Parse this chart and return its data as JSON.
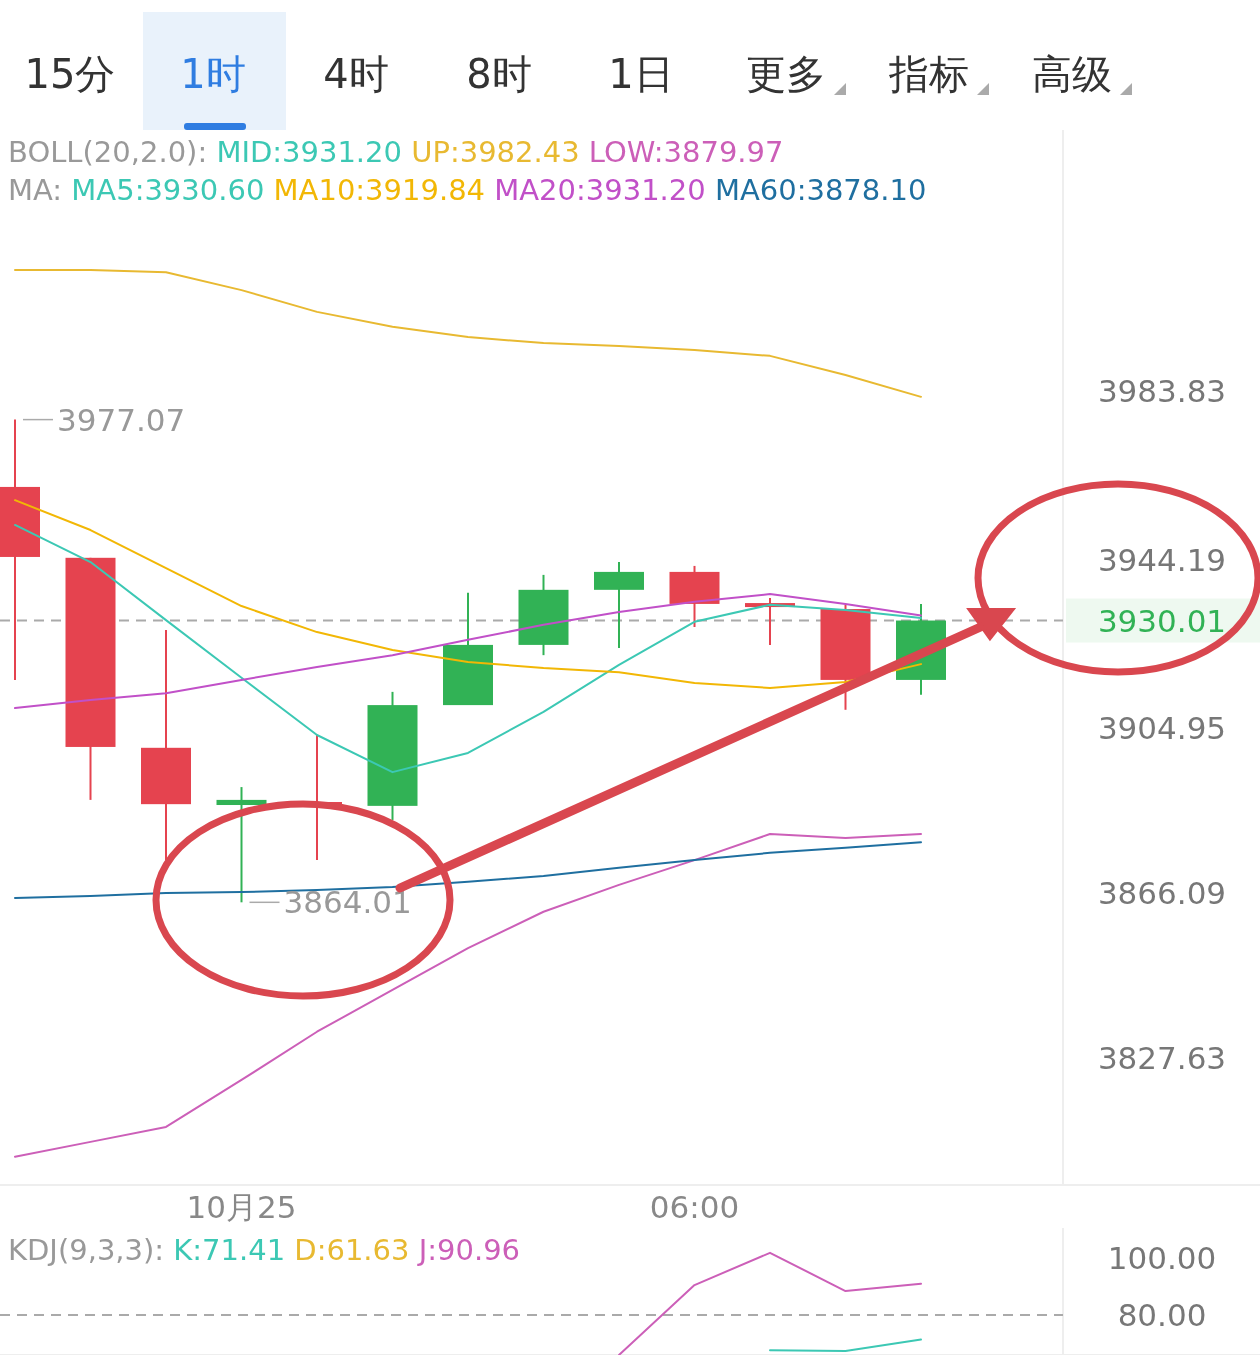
{
  "chart_data": [
    {
      "type": "candlestick",
      "categories": [
        null,
        null,
        null,
        "10月25",
        null,
        null,
        null,
        null,
        null,
        "06:00",
        null,
        null,
        null
      ],
      "ohlc": [
        [
          3961.3,
          3977.07,
          3916.1,
          3944.9
        ],
        [
          3944.7,
          3944.7,
          3888.0,
          3900.4
        ],
        [
          3900.2,
          3927.8,
          3873.9,
          3887.0
        ],
        [
          3886.8,
          3891.0,
          3864.01,
          3888.0
        ],
        [
          3887.5,
          3903.2,
          3873.9,
          3886.6
        ],
        [
          3886.6,
          3913.3,
          3883.3,
          3910.2
        ],
        [
          3910.2,
          3936.5,
          3910.2,
          3924.3
        ],
        [
          3924.3,
          3940.7,
          3921.9,
          3937.2
        ],
        [
          3937.2,
          3943.7,
          3923.6,
          3941.4
        ],
        [
          3941.4,
          3942.8,
          3928.5,
          3933.9
        ],
        [
          3934.1,
          3935.3,
          3924.3,
          3933.4
        ],
        [
          3932.7,
          3933.7,
          3909.1,
          3916.1
        ],
        [
          3916.1,
          3933.9,
          3912.6,
          3930.01
        ]
      ],
      "colors": [
        "#e5434f",
        "#e5434f",
        "#e5434f",
        "#31b255",
        "#e5434f",
        "#31b255",
        "#31b255",
        "#31b255",
        "#31b255",
        "#e5434f",
        "#e5434f",
        "#e5434f",
        "#31b255"
      ],
      "series": [
        {
          "name": "UP:3982.43",
          "type": "line",
          "color": "#e8b931",
          "values": [
            4012.1,
            4012.1,
            4011.6,
            4007.4,
            4002.3,
            3998.8,
            3996.4,
            3995.0,
            3994.3,
            3993.4,
            3992.0,
            3987.5,
            3982.4
          ]
        },
        {
          "name": "LOW:3879.97",
          "type": "line",
          "color": "#cc5fb8",
          "values": [
            3804.4,
            3807.9,
            3811.4,
            3822.4,
            3833.7,
            3843.5,
            3853.3,
            3861.8,
            3868.1,
            3873.9,
            3880.0,
            3879.1,
            3880.0
          ]
        },
        {
          "name": "MA5:3930.60",
          "type": "line",
          "color": "#3cc8b4",
          "values": [
            3952.4,
            3943.7,
            3930.1,
            3916.6,
            3903.2,
            3894.5,
            3899.0,
            3908.6,
            3919.6,
            3929.7,
            3933.7,
            3932.5,
            3930.6
          ]
        },
        {
          "name": "MA10:3919.84",
          "type": "line",
          "color": "#f2b705",
          "values": [
            3958.2,
            3951.2,
            3942.3,
            3933.4,
            3927.3,
            3923.1,
            3920.3,
            3918.9,
            3917.9,
            3915.4,
            3914.2,
            3915.6,
            3919.8
          ]
        },
        {
          "name": "MA20:3931.20",
          "type": "line",
          "color": "#c150c8",
          "values": [
            3909.5,
            3911.4,
            3913.0,
            3916.1,
            3919.1,
            3921.9,
            3925.5,
            3929.0,
            3932.0,
            3934.4,
            3936.2,
            3933.9,
            3931.2
          ]
        },
        {
          "name": "MA60:3878.10",
          "type": "line",
          "color": "#1f6fa0",
          "values": [
            3865.0,
            3865.5,
            3866.2,
            3866.4,
            3866.9,
            3867.6,
            3868.8,
            3870.2,
            3872.1,
            3873.9,
            3875.6,
            3876.8,
            3878.1
          ]
        }
      ],
      "ylim": [
        3797.8,
        4044.9
      ],
      "yticks": [
        3983.83,
        3944.19,
        3904.95,
        3866.09,
        3827.63
      ],
      "ref_lines": [
        {
          "axis": "y",
          "value": 3930.01,
          "label": "3930.01",
          "line_style": "dashed"
        }
      ],
      "grid": false,
      "legend": "top",
      "annotations": [
        "15分",
        "1时",
        "4时",
        "8时",
        "1日",
        "更多",
        "指标",
        "高级",
        "BOLL(20,2.0):",
        "MID:3931.20",
        "MA:",
        "3977.07",
        "3864.01"
      ]
    },
    {
      "type": "line",
      "categories": [
        null,
        null,
        null,
        null,
        null,
        null,
        null,
        null,
        null,
        null,
        null,
        null,
        null
      ],
      "series": [
        {
          "name": "K:71.41",
          "color": "#3cc8b4",
          "values": [
            null,
            null,
            null,
            null,
            null,
            null,
            null,
            null,
            null,
            null,
            67.7,
            67.4,
            71.4
          ]
        },
        {
          "name": "J:90.96",
          "color": "#cc5fb8",
          "values": [
            null,
            null,
            null,
            null,
            null,
            null,
            null,
            null,
            66.0,
            90.5,
            101.8,
            88.4,
            91.0
          ]
        }
      ],
      "ylim": [
        66.0,
        110.5
      ],
      "yticks": [
        {
          "value": 100,
          "label": "100.00"
        },
        {
          "value": 80,
          "label": "80.00"
        }
      ],
      "ref_lines": [
        {
          "axis": "y",
          "value": 80,
          "line_style": "dashed"
        }
      ],
      "tick_labels": "y",
      "grid": false,
      "legend": "top left",
      "annotations": [
        "KDJ(9,3,3):",
        "D:61.63"
      ]
    }
  ]
}
